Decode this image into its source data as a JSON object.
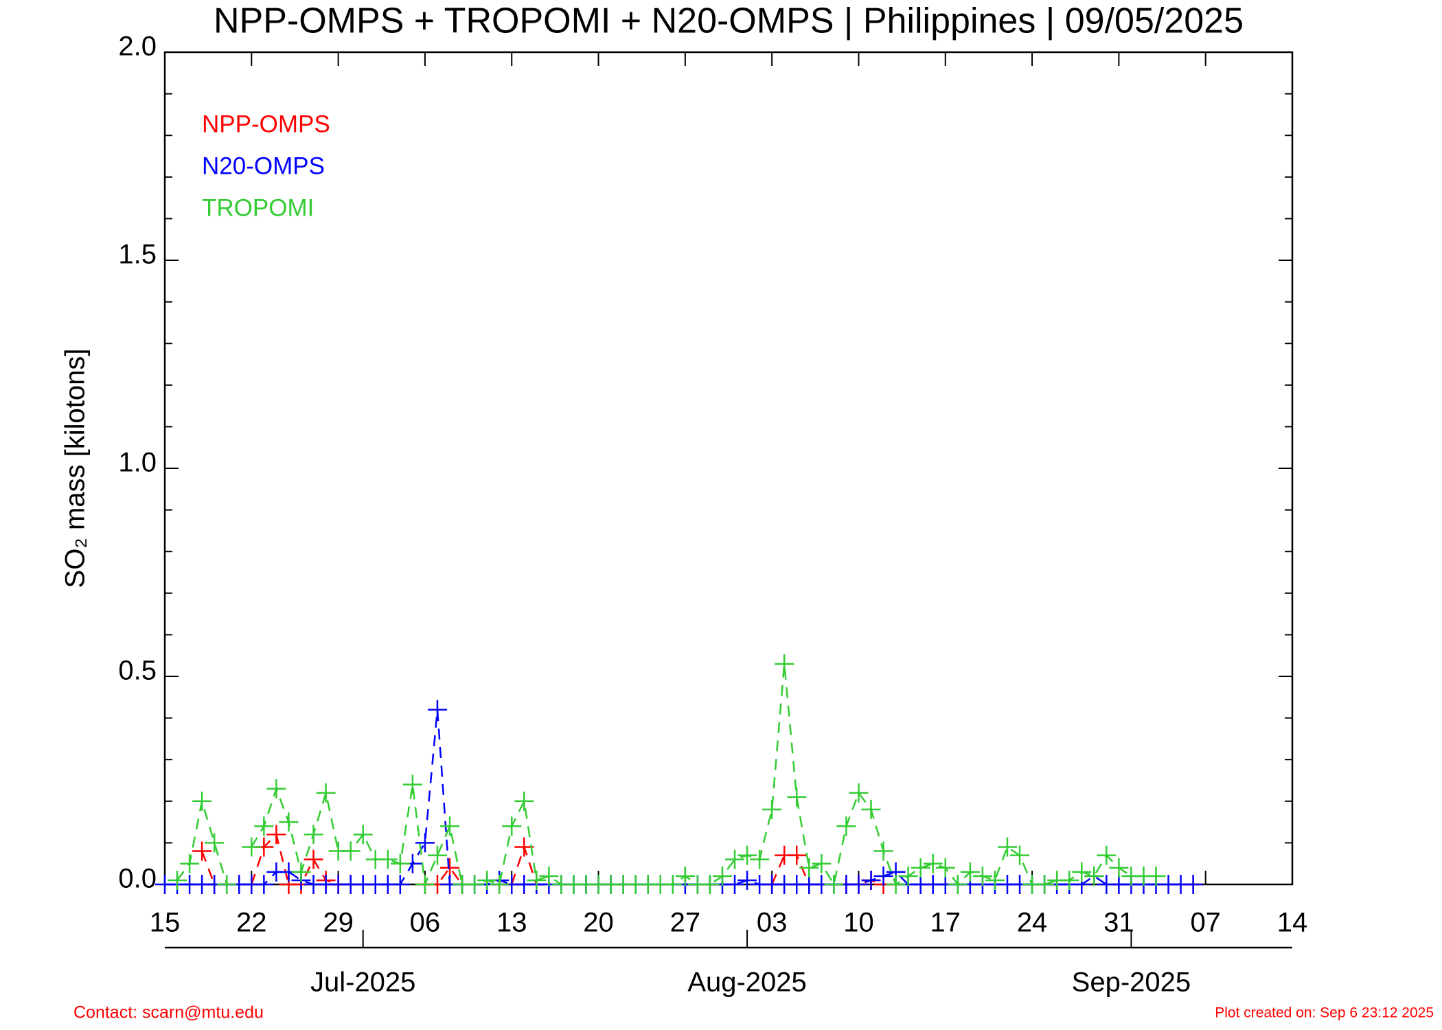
{
  "chart_data": {
    "type": "line",
    "title": "NPP-OMPS + TROPOMI + N20-OMPS | Philippines | 09/05/2025",
    "y_label": "SO₂ mass [kilotons]",
    "contact": "Contact: scarn@mtu.edu",
    "created": "Plot created on: Sep  6 23:12 2025",
    "xlim": [
      "2025-06-15",
      "2025-09-14"
    ],
    "xticks": [
      {
        "value": "2025-06-15",
        "label": "15"
      },
      {
        "value": "2025-06-22",
        "label": "22"
      },
      {
        "value": "2025-06-29",
        "label": "29"
      },
      {
        "value": "2025-07-06",
        "label": "06"
      },
      {
        "value": "2025-07-13",
        "label": "13"
      },
      {
        "value": "2025-07-20",
        "label": "20"
      },
      {
        "value": "2025-07-27",
        "label": "27"
      },
      {
        "value": "2025-08-03",
        "label": "03"
      },
      {
        "value": "2025-08-10",
        "label": "10"
      },
      {
        "value": "2025-08-17",
        "label": "17"
      },
      {
        "value": "2025-08-24",
        "label": "24"
      },
      {
        "value": "2025-08-31",
        "label": "31"
      },
      {
        "value": "2025-09-07",
        "label": "07"
      },
      {
        "value": "2025-09-14",
        "label": "14"
      }
    ],
    "month_ticks": [
      {
        "value": "2025-07-01",
        "label": "Jul-2025"
      },
      {
        "value": "2025-08-01",
        "label": "Aug-2025"
      },
      {
        "value": "2025-09-01",
        "label": "Sep-2025"
      }
    ],
    "ylim": [
      0,
      2
    ],
    "yticks": [
      {
        "value": 0,
        "label": "0.0"
      },
      0.5,
      {
        "value": 1,
        "label": "1.0"
      },
      1.5,
      {
        "value": 2,
        "label": "2.0"
      }
    ],
    "x": [
      "2025-06-15",
      "2025-06-16",
      "2025-06-17",
      "2025-06-18",
      "2025-06-19",
      "2025-06-20",
      "2025-06-21",
      "2025-06-22",
      "2025-06-23",
      "2025-06-24",
      "2025-06-25",
      "2025-06-26",
      "2025-06-27",
      "2025-06-28",
      "2025-06-29",
      "2025-06-30",
      "2025-07-01",
      "2025-07-02",
      "2025-07-03",
      "2025-07-04",
      "2025-07-05",
      "2025-07-06",
      "2025-07-07",
      "2025-07-08",
      "2025-07-09",
      "2025-07-10",
      "2025-07-11",
      "2025-07-12",
      "2025-07-13",
      "2025-07-14",
      "2025-07-15",
      "2025-07-16",
      "2025-07-17",
      "2025-07-18",
      "2025-07-19",
      "2025-07-20",
      "2025-07-21",
      "2025-07-22",
      "2025-07-23",
      "2025-07-24",
      "2025-07-25",
      "2025-07-26",
      "2025-07-27",
      "2025-07-28",
      "2025-07-29",
      "2025-07-30",
      "2025-07-31",
      "2025-08-01",
      "2025-08-02",
      "2025-08-03",
      "2025-08-04",
      "2025-08-05",
      "2025-08-06",
      "2025-08-07",
      "2025-08-08",
      "2025-08-09",
      "2025-08-10",
      "2025-08-11",
      "2025-08-12",
      "2025-08-13",
      "2025-08-14",
      "2025-08-15",
      "2025-08-16",
      "2025-08-17",
      "2025-08-18",
      "2025-08-19",
      "2025-08-20",
      "2025-08-21",
      "2025-08-22",
      "2025-08-23",
      "2025-08-24",
      "2025-08-25",
      "2025-08-26",
      "2025-08-27",
      "2025-08-28",
      "2025-08-29",
      "2025-08-30",
      "2025-08-31",
      "2025-09-01",
      "2025-09-02",
      "2025-09-03",
      "2025-09-04",
      "2025-09-05",
      "2025-09-06",
      "2025-09-07"
    ],
    "series": [
      {
        "name": "NPP-OMPS",
        "color": "#ff0000",
        "values": [
          null,
          null,
          null,
          0.08,
          0,
          null,
          null,
          0,
          0.09,
          0.12,
          0,
          0,
          0.06,
          0.01,
          0,
          0,
          null,
          null,
          null,
          null,
          null,
          0,
          0,
          0.04,
          0,
          null,
          null,
          null,
          0,
          0.09,
          0,
          null,
          null,
          null,
          null,
          null,
          null,
          null,
          null,
          null,
          null,
          null,
          null,
          null,
          null,
          null,
          null,
          null,
          null,
          0,
          0.07,
          0.07,
          0,
          null,
          null,
          0,
          0,
          0.01,
          0,
          null,
          null,
          null,
          null,
          null,
          null,
          null,
          null,
          null,
          null,
          null,
          null,
          null,
          null,
          null,
          null,
          null,
          null,
          null,
          null,
          null,
          null,
          null,
          null,
          0,
          null
        ]
      },
      {
        "name": "N20-OMPS",
        "color": "#0000ff",
        "values": [
          0,
          0,
          0,
          0,
          0,
          0,
          0,
          0,
          0,
          0.03,
          0.03,
          0.01,
          0,
          0,
          0,
          0,
          0,
          0,
          0,
          0,
          0.05,
          0.1,
          0.42,
          0,
          0,
          0,
          0,
          0.01,
          0,
          0,
          0,
          0,
          0,
          0,
          0,
          0,
          0,
          0,
          0,
          0,
          0,
          0,
          0,
          0,
          0,
          0,
          0,
          0.01,
          0,
          0,
          0,
          0,
          0,
          0,
          0,
          0,
          0,
          0.01,
          0.02,
          0.03,
          0,
          0,
          0,
          0,
          0,
          0,
          0,
          0,
          0,
          0,
          0,
          0,
          0,
          0,
          0,
          0.02,
          0,
          0,
          0,
          0,
          0,
          0,
          0,
          0,
          null
        ]
      },
      {
        "name": "TROPOMI",
        "color": "#33cc33",
        "values": [
          null,
          0.01,
          0.05,
          0.2,
          0.1,
          0,
          null,
          0.09,
          0.14,
          0.23,
          0.15,
          0.03,
          0.12,
          0.22,
          0.08,
          0.08,
          0.12,
          0.06,
          0.06,
          0.05,
          0.24,
          0,
          0.07,
          0.14,
          0,
          0,
          0.01,
          0,
          0.14,
          0.2,
          0.01,
          0.02,
          0,
          0,
          0,
          0,
          0,
          0,
          0,
          0,
          0,
          0,
          0.02,
          0,
          0,
          0.02,
          0.06,
          0.07,
          0.06,
          0.18,
          0.53,
          0.21,
          0.04,
          0.05,
          0,
          0.14,
          0.22,
          0.18,
          0.08,
          0,
          0.02,
          0.04,
          0.05,
          0.04,
          0,
          0.03,
          0.02,
          0.01,
          0.09,
          0.07,
          0,
          0,
          0.01,
          0.01,
          0.03,
          0.02,
          0.07,
          0.04,
          0.02,
          0.02,
          0.02,
          null,
          null,
          null,
          null
        ]
      }
    ]
  }
}
